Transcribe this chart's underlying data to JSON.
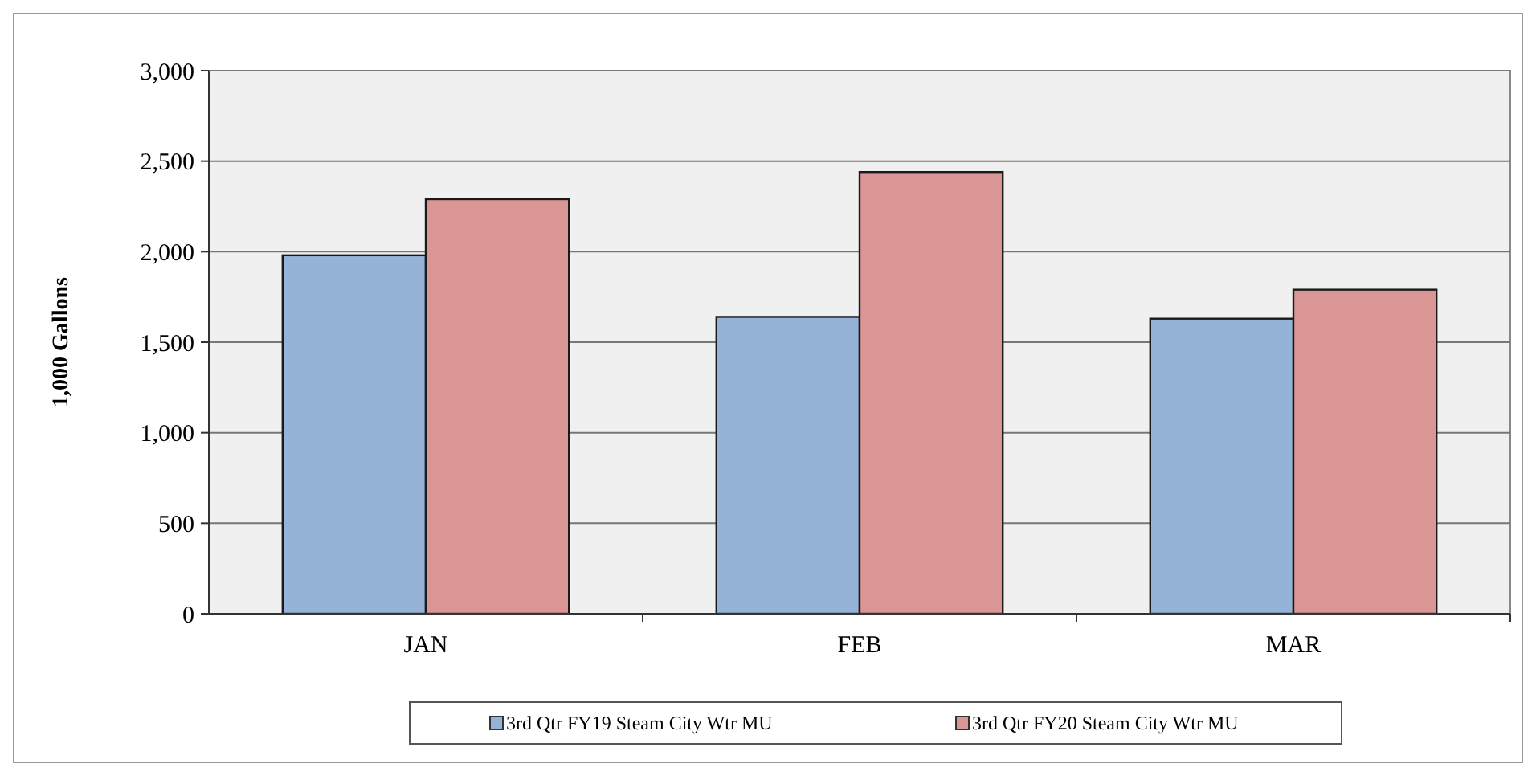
{
  "chart_data": {
    "type": "bar",
    "categories": [
      "JAN",
      "FEB",
      "MAR"
    ],
    "ylabel": "1,000 Gallons",
    "series": [
      {
        "name": "3rd Qtr FY19 Steam City Wtr MU",
        "color": "#95b3d7",
        "values": [
          1980,
          1640,
          1630
        ]
      },
      {
        "name": "3rd Qtr FY20 Steam City Wtr MU",
        "color": "#d99694",
        "values": [
          2290,
          2440,
          1790
        ]
      }
    ],
    "ylim": [
      0,
      3000
    ],
    "yticks": [
      {
        "value": 0,
        "label": "0"
      },
      {
        "value": 500,
        "label": "500"
      },
      {
        "value": 1000,
        "label": "1,000"
      },
      {
        "value": 1500,
        "label": "1,500"
      },
      {
        "value": 2000,
        "label": "2,000"
      },
      {
        "value": 2500,
        "label": "2,500"
      },
      {
        "value": 3000,
        "label": "3,000"
      }
    ],
    "grid": "y",
    "legend": "bottom"
  }
}
